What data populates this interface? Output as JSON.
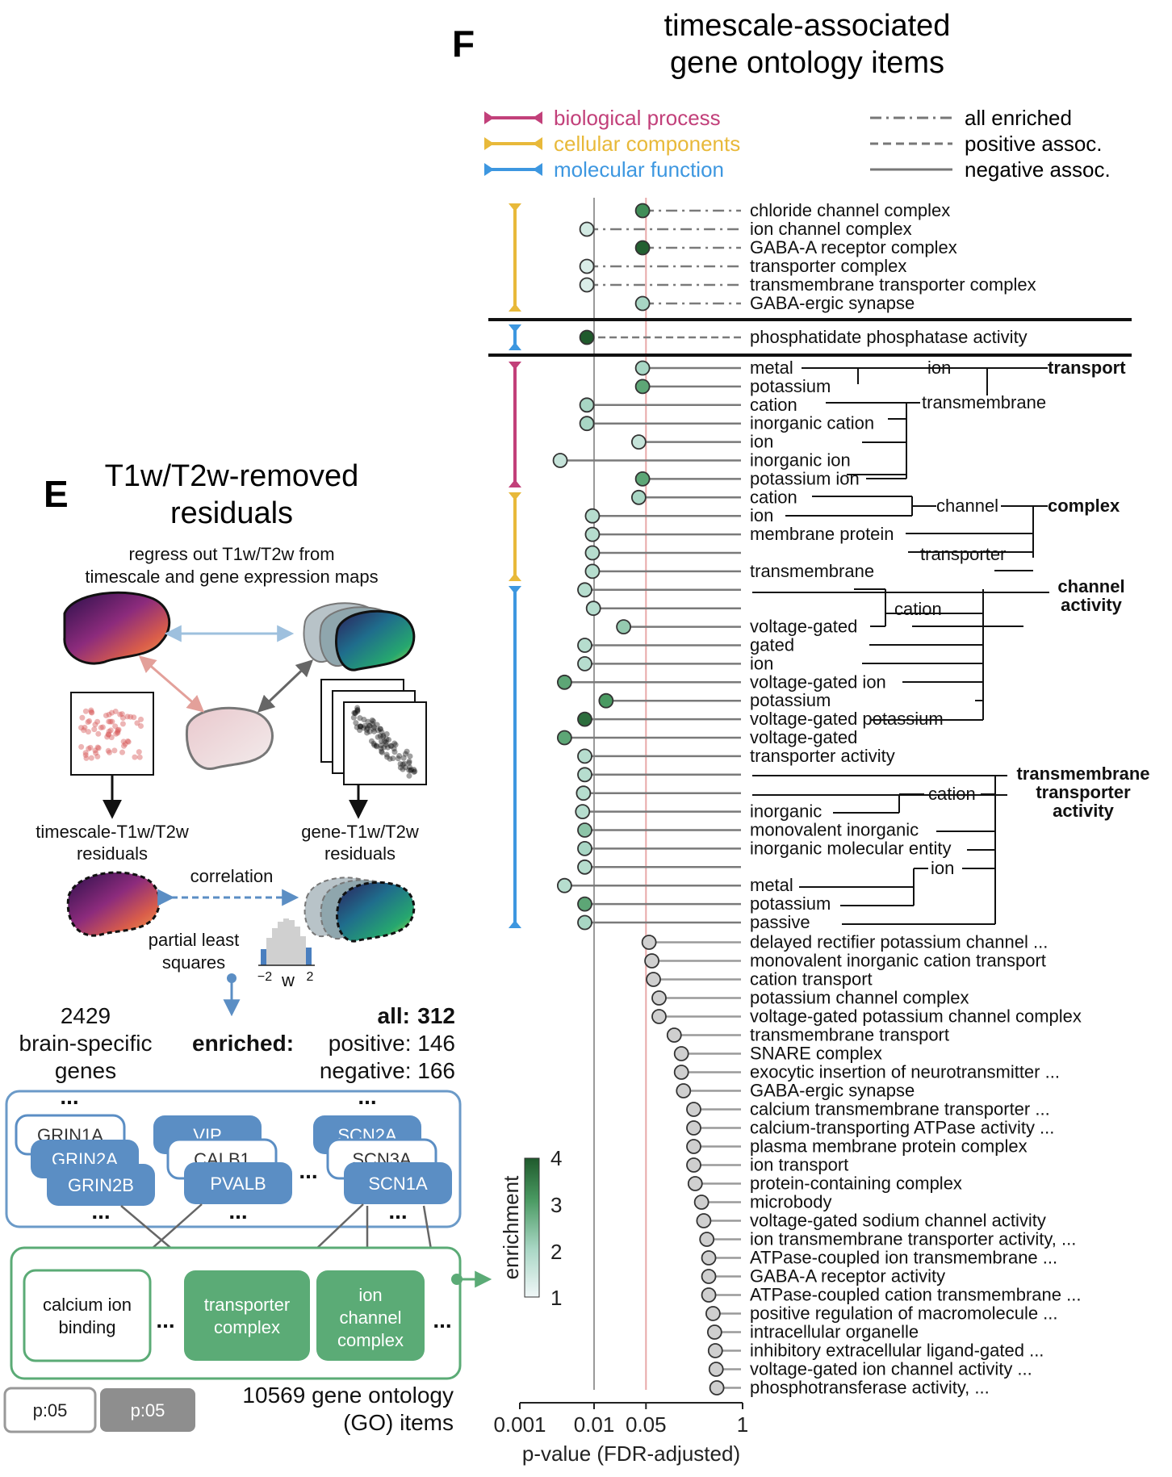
{
  "panel_f": {
    "letter": "F",
    "title_line1": "timescale-associated",
    "title_line2": "gene ontology items"
  },
  "panel_e": {
    "letter": "E",
    "title_line1": "T1w/T2w-removed",
    "title_line2": "residuals",
    "subtitle_line1": "regress out T1w/T2w from",
    "subtitle_line2": "timescale and gene expression maps",
    "timescale_residuals_line1": "timescale-T1w/T2w",
    "timescale_residuals_line2": "residuals",
    "gene_residuals_line1": "gene-T1w/T2w",
    "gene_residuals_line2": "residuals",
    "correlation": "correlation",
    "pls_line1": "partial least",
    "pls_line2": "squares",
    "hist_tick_left": "−2",
    "hist_tick_right": "2",
    "hist_xlabel": "w",
    "genes_count": "2429",
    "genes_line2": "brain-specific",
    "genes_line3": "genes",
    "enriched_label": "enriched:",
    "all_label": "all:",
    "all_value": "312",
    "positive_label": "positive: 146",
    "negative_label": "negative: 166",
    "ellipsis": "...",
    "gene_cards_back": [
      "GRIN1A",
      "GRIN2A",
      "VIP",
      "CALB1",
      "SCN2A",
      "SCN3A"
    ],
    "gene_cards_front": [
      "GRIN2B",
      "PVALB",
      "SCN1A"
    ],
    "go_boxes": [
      "calcium ion binding",
      "transporter complex",
      "ion channel complex"
    ],
    "go_box_lines": [
      [
        "calcium ion",
        "binding"
      ],
      [
        "transporter",
        "complex"
      ],
      [
        "ion",
        "channel",
        "complex"
      ]
    ],
    "go_total_line1": "10569 gene ontology",
    "go_total_line2": "(GO) items",
    "button_left": "p:05",
    "button_right": "p:05"
  },
  "legend": {
    "categories": [
      {
        "name": "biological process",
        "color": "#c2407a"
      },
      {
        "name": "cellular components",
        "color": "#e8b93a"
      },
      {
        "name": "molecular function",
        "color": "#3d97e0"
      }
    ],
    "line_styles": [
      "all enriched",
      "positive assoc.",
      "negative assoc."
    ]
  },
  "colorbar": {
    "label": "enrichment",
    "ticks": [
      "4",
      "3",
      "2",
      "1"
    ],
    "low_color": "#f0f7f8",
    "high_color": "#1f5a2c"
  },
  "groups": {
    "cellular_components_top": {
      "label": "complex",
      "items": [
        "chloride channel complex",
        "ion channel complex",
        "GABA-A receptor complex",
        "transporter complex",
        "transmembrane transporter complex",
        "GABA-ergic synapse"
      ]
    },
    "molecular_function_positive": {
      "items": [
        "phosphatidate phosphatase activity"
      ]
    },
    "hierarchy_groups": [
      {
        "label": "transport",
        "sub": [
          "ion",
          "transmembrane"
        ]
      },
      {
        "label": "complex",
        "sub": [
          "channel",
          "transporter"
        ]
      },
      {
        "label": "channel activity",
        "sub": [
          "cation"
        ]
      },
      {
        "label": "transmembrane transporter activity",
        "sub": [
          "cation",
          "ion"
        ]
      }
    ]
  },
  "chart_data": {
    "type": "scatter",
    "xlabel": "p-value (FDR-adjusted)",
    "x_scale": "log",
    "xlim": [
      0.001,
      1
    ],
    "x_ticks": [
      "0.001",
      "0.01",
      "0.05",
      "1"
    ],
    "reference_lines": [
      0.01,
      0.05
    ],
    "items": [
      {
        "label": "chloride channel complex",
        "p": 0.045,
        "enrichment": 3.2,
        "category": "cellular components",
        "style": "all enriched"
      },
      {
        "label": "ion channel complex",
        "p": 0.008,
        "enrichment": 1.4,
        "category": "cellular components",
        "style": "all enriched"
      },
      {
        "label": "GABA-A receptor complex",
        "p": 0.045,
        "enrichment": 3.9,
        "category": "cellular components",
        "style": "all enriched"
      },
      {
        "label": "transporter complex",
        "p": 0.008,
        "enrichment": 1.3,
        "category": "cellular components",
        "style": "all enriched"
      },
      {
        "label": "transmembrane transporter complex",
        "p": 0.008,
        "enrichment": 1.3,
        "category": "cellular components",
        "style": "all enriched"
      },
      {
        "label": "GABA-ergic synapse",
        "p": 0.045,
        "enrichment": 2.0,
        "category": "cellular components",
        "style": "all enriched"
      },
      {
        "label": "phosphatidate phosphatase activity",
        "p": 0.008,
        "enrichment": 4.0,
        "category": "molecular function",
        "style": "positive assoc."
      },
      {
        "label": "metal",
        "p": 0.045,
        "enrichment": 2.0,
        "category": "biological process",
        "style": "negative assoc."
      },
      {
        "label": "potassium",
        "p": 0.045,
        "enrichment": 2.8,
        "category": "biological process",
        "style": "negative assoc."
      },
      {
        "label": "cation",
        "p": 0.008,
        "enrichment": 2.0,
        "category": "biological process",
        "style": "negative assoc."
      },
      {
        "label": "inorganic cation",
        "p": 0.008,
        "enrichment": 2.0,
        "category": "biological process",
        "style": "negative assoc."
      },
      {
        "label": "ion",
        "p": 0.04,
        "enrichment": 1.6,
        "category": "biological process",
        "style": "negative assoc."
      },
      {
        "label": "inorganic ion",
        "p": 0.0035,
        "enrichment": 1.6,
        "category": "biological process",
        "style": "negative assoc."
      },
      {
        "label": "potassium ion",
        "p": 0.045,
        "enrichment": 2.8,
        "category": "biological process",
        "style": "negative assoc."
      },
      {
        "label": "cation",
        "p": 0.04,
        "enrichment": 2.0,
        "category": "cellular components",
        "style": "negative assoc."
      },
      {
        "label": "ion",
        "p": 0.0095,
        "enrichment": 1.8,
        "category": "cellular components",
        "style": "negative assoc."
      },
      {
        "label": "membrane protein",
        "p": 0.0095,
        "enrichment": 1.8,
        "category": "cellular components",
        "style": "negative assoc."
      },
      {
        "label": "",
        "p": 0.0095,
        "enrichment": 1.8,
        "category": "cellular components",
        "style": "negative assoc."
      },
      {
        "label": "transmembrane",
        "p": 0.0095,
        "enrichment": 1.8,
        "category": "cellular components",
        "style": "negative assoc."
      },
      {
        "label": "",
        "p": 0.0075,
        "enrichment": 1.8,
        "category": "molecular function",
        "style": "negative assoc."
      },
      {
        "label": "",
        "p": 0.0098,
        "enrichment": 1.8,
        "category": "molecular function",
        "style": "negative assoc."
      },
      {
        "label": "voltage-gated",
        "p": 0.025,
        "enrichment": 2.2,
        "category": "molecular function",
        "style": "negative assoc."
      },
      {
        "label": "gated",
        "p": 0.0075,
        "enrichment": 1.8,
        "category": "molecular function",
        "style": "negative assoc."
      },
      {
        "label": "ion",
        "p": 0.0075,
        "enrichment": 1.8,
        "category": "molecular function",
        "style": "negative assoc."
      },
      {
        "label": "voltage-gated ion",
        "p": 0.004,
        "enrichment": 2.8,
        "category": "molecular function",
        "style": "negative assoc."
      },
      {
        "label": "potassium",
        "p": 0.0145,
        "enrichment": 3.0,
        "category": "molecular function",
        "style": "negative assoc."
      },
      {
        "label": "voltage-gated potassium",
        "p": 0.0075,
        "enrichment": 3.7,
        "category": "molecular function",
        "style": "negative assoc."
      },
      {
        "label": "voltage-gated",
        "p": 0.004,
        "enrichment": 2.8,
        "category": "molecular function",
        "style": "negative assoc."
      },
      {
        "label": "transporter activity",
        "p": 0.0075,
        "enrichment": 1.8,
        "category": "molecular function",
        "style": "negative assoc."
      },
      {
        "label": "",
        "p": 0.0075,
        "enrichment": 1.8,
        "category": "molecular function",
        "style": "negative assoc."
      },
      {
        "label": "",
        "p": 0.0072,
        "enrichment": 1.8,
        "category": "molecular function",
        "style": "negative assoc."
      },
      {
        "label": "inorganic",
        "p": 0.007,
        "enrichment": 1.8,
        "category": "molecular function",
        "style": "negative assoc."
      },
      {
        "label": "monovalent inorganic",
        "p": 0.0075,
        "enrichment": 2.3,
        "category": "molecular function",
        "style": "negative assoc."
      },
      {
        "label": "inorganic molecular entity",
        "p": 0.0075,
        "enrichment": 2.0,
        "category": "molecular function",
        "style": "negative assoc."
      },
      {
        "label": "",
        "p": 0.0075,
        "enrichment": 1.8,
        "category": "molecular function",
        "style": "negative assoc."
      },
      {
        "label": "metal",
        "p": 0.004,
        "enrichment": 1.8,
        "category": "molecular function",
        "style": "negative assoc."
      },
      {
        "label": "potassium",
        "p": 0.0075,
        "enrichment": 2.8,
        "category": "molecular function",
        "style": "negative assoc."
      },
      {
        "label": "passive",
        "p": 0.0075,
        "enrichment": 2.0,
        "category": "molecular function",
        "style": "negative assoc."
      },
      {
        "label": "delayed rectifier potassium channel ...",
        "p": 0.055,
        "enrichment": null
      },
      {
        "label": "monovalent inorganic cation transport",
        "p": 0.06,
        "enrichment": null
      },
      {
        "label": "cation transport",
        "p": 0.063,
        "enrichment": null
      },
      {
        "label": "potassium channel complex",
        "p": 0.075,
        "enrichment": null
      },
      {
        "label": "voltage-gated potassium channel complex",
        "p": 0.075,
        "enrichment": null
      },
      {
        "label": "transmembrane transport",
        "p": 0.12,
        "enrichment": null
      },
      {
        "label": "SNARE complex",
        "p": 0.15,
        "enrichment": null
      },
      {
        "label": "exocytic insertion of neurotransmitter ...",
        "p": 0.15,
        "enrichment": null
      },
      {
        "label": "GABA-ergic synapse",
        "p": 0.16,
        "enrichment": null
      },
      {
        "label": "calcium transmembrane transporter ...",
        "p": 0.22,
        "enrichment": null
      },
      {
        "label": "calcium-transporting ATPase activity ...",
        "p": 0.22,
        "enrichment": null
      },
      {
        "label": "plasma membrane protein complex",
        "p": 0.22,
        "enrichment": null
      },
      {
        "label": "ion transport",
        "p": 0.22,
        "enrichment": null
      },
      {
        "label": "protein-containing complex",
        "p": 0.23,
        "enrichment": null
      },
      {
        "label": "microbody",
        "p": 0.28,
        "enrichment": null
      },
      {
        "label": "voltage-gated sodium channel activity",
        "p": 0.3,
        "enrichment": null
      },
      {
        "label": "ion transmembrane transporter activity, ...",
        "p": 0.33,
        "enrichment": null
      },
      {
        "label": "ATPase-coupled ion transmembrane ...",
        "p": 0.35,
        "enrichment": null
      },
      {
        "label": "GABA-A receptor activity",
        "p": 0.35,
        "enrichment": null
      },
      {
        "label": "ATPase-coupled cation transmembrane ...",
        "p": 0.35,
        "enrichment": null
      },
      {
        "label": "positive regulation of macromolecule ...",
        "p": 0.4,
        "enrichment": null
      },
      {
        "label": "intracellular organelle",
        "p": 0.42,
        "enrichment": null
      },
      {
        "label": "inhibitory extracellular ligand-gated ...",
        "p": 0.43,
        "enrichment": null
      },
      {
        "label": "voltage-gated ion channel activity ...",
        "p": 0.44,
        "enrichment": null
      },
      {
        "label": "phosphotransferase activity, ...",
        "p": 0.45,
        "enrichment": null
      }
    ]
  }
}
